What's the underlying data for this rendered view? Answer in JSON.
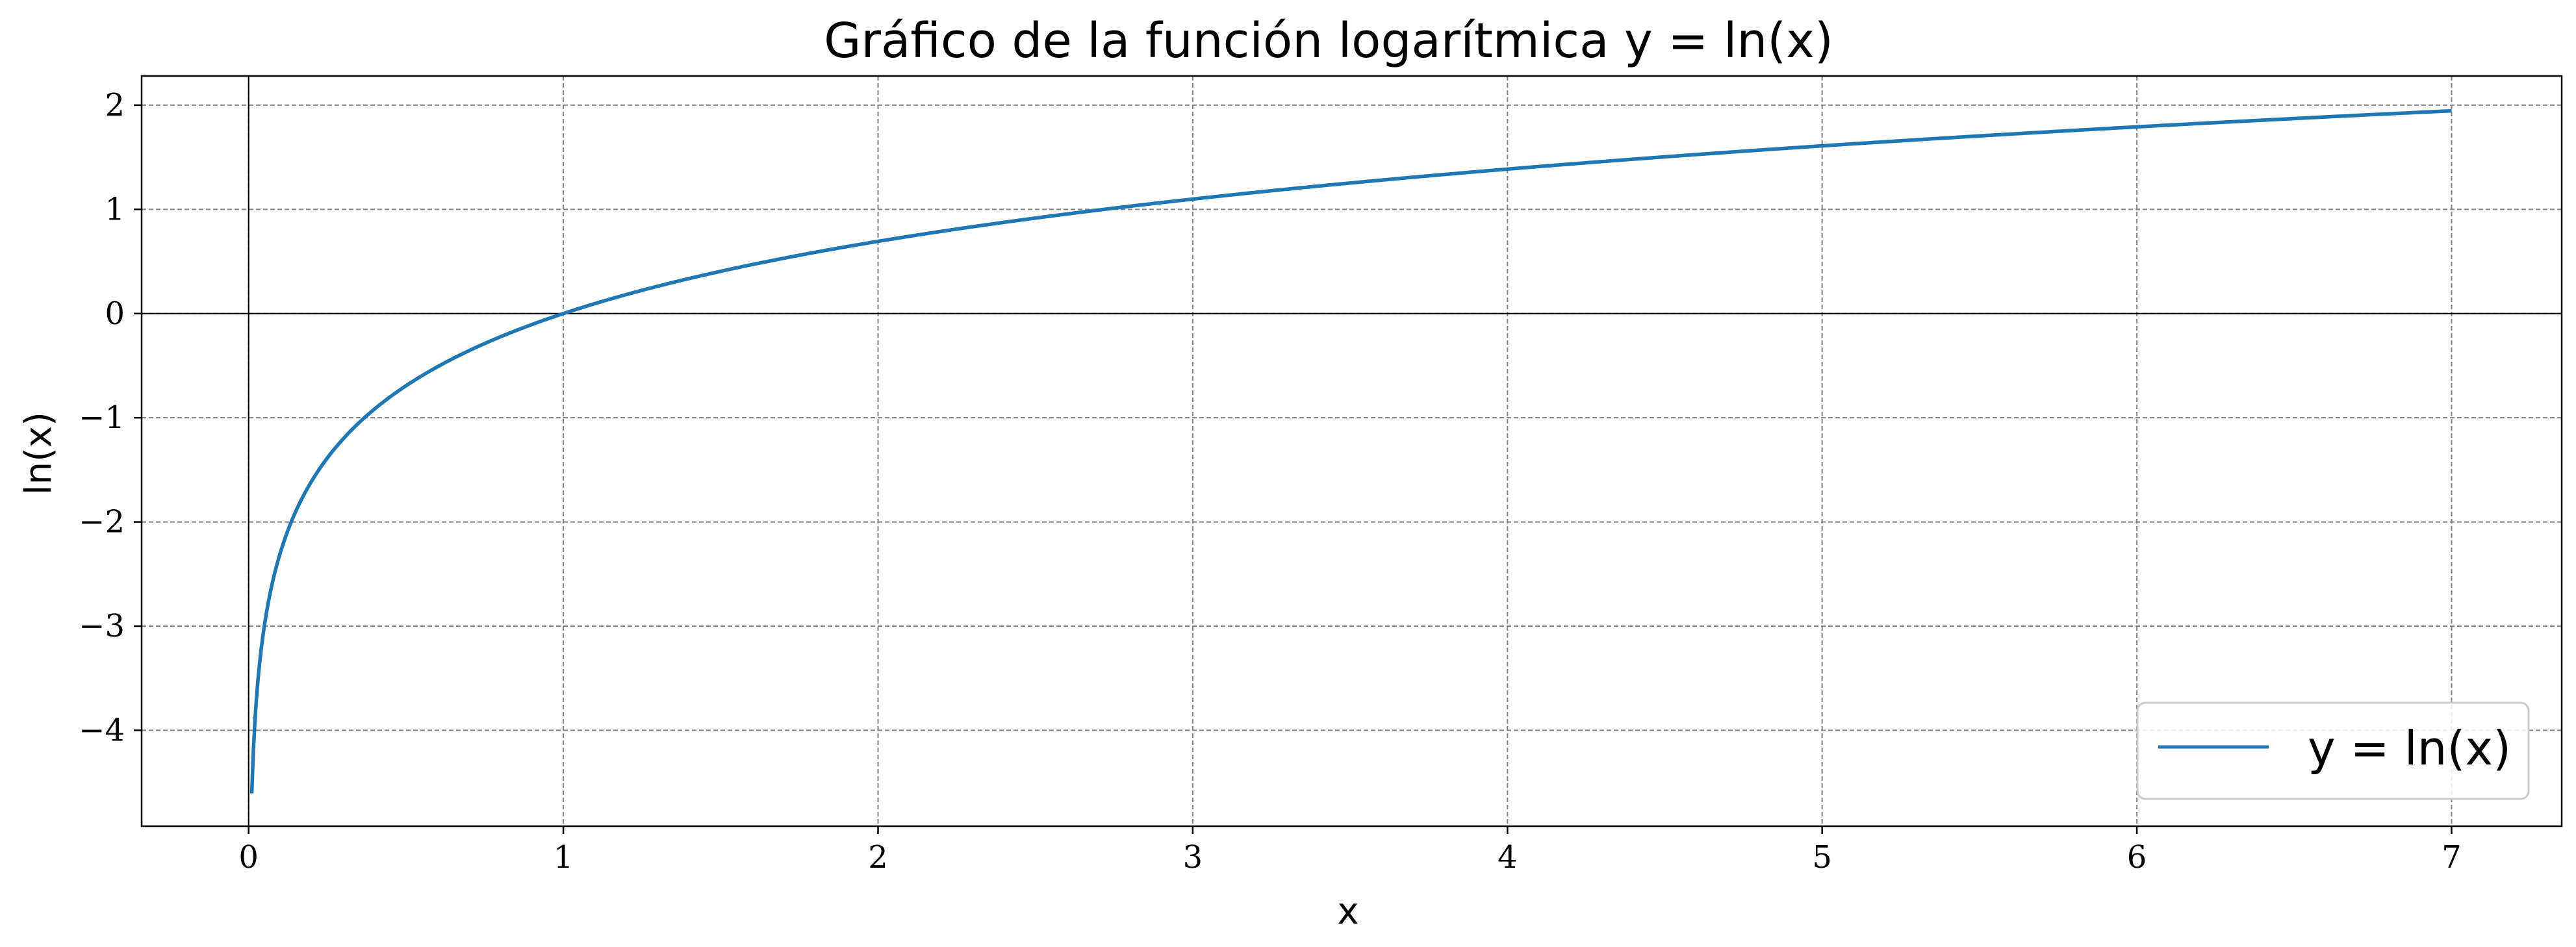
{
  "chart_data": {
    "type": "line",
    "title": "Gráfico de la función logarítmica y = ln(x)",
    "xlabel": "x",
    "ylabel": "ln(x)",
    "xlim": [
      -0.34,
      7.35
    ],
    "ylim": [
      -4.92,
      2.28
    ],
    "x_ticks": [
      0,
      1,
      2,
      3,
      4,
      5,
      6,
      7
    ],
    "x_tick_labels": [
      "0",
      "1",
      "2",
      "3",
      "4",
      "5",
      "6",
      "7"
    ],
    "y_ticks": [
      2,
      1,
      0,
      -1,
      -2,
      -3,
      -4
    ],
    "y_tick_labels": [
      "2",
      "1",
      "0",
      "−1",
      "−2",
      "−3",
      "−4"
    ],
    "grid": true,
    "reference_lines": {
      "x": 0,
      "y": 0
    },
    "legend": {
      "position": "lower-right",
      "entries": [
        "y = ln(x)"
      ]
    },
    "series": [
      {
        "name": "y = ln(x)",
        "color": "#1f77b4",
        "function": "ln(x)",
        "x_range": [
          0.01,
          7
        ],
        "points": [
          [
            0.01,
            -4.61
          ],
          [
            0.03,
            -3.51
          ],
          [
            0.05,
            -3.0
          ],
          [
            0.1,
            -2.3
          ],
          [
            0.2,
            -1.61
          ],
          [
            0.3,
            -1.2
          ],
          [
            0.5,
            -0.69
          ],
          [
            0.7,
            -0.36
          ],
          [
            1,
            0
          ],
          [
            1.5,
            0.41
          ],
          [
            2,
            0.69
          ],
          [
            2.5,
            0.92
          ],
          [
            3,
            1.1
          ],
          [
            3.5,
            1.25
          ],
          [
            4,
            1.39
          ],
          [
            4.5,
            1.5
          ],
          [
            5,
            1.61
          ],
          [
            5.5,
            1.7
          ],
          [
            6,
            1.79
          ],
          [
            6.5,
            1.87
          ],
          [
            7,
            1.95
          ]
        ]
      }
    ]
  }
}
